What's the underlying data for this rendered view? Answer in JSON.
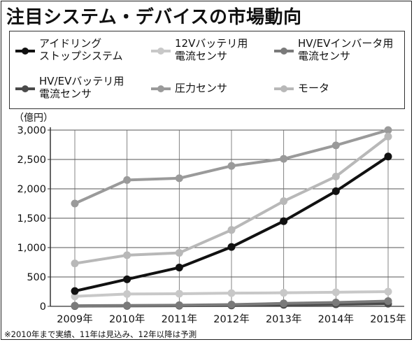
{
  "title": "注目システム・デバイスの市場動向",
  "unit_label": "（億円）",
  "footnote": "※2010年まで実績、11年は見込み、12年以降は予測",
  "chart_data": {
    "type": "line",
    "title": "注目システム・デバイスの市場動向",
    "xlabel": "",
    "ylabel": "（億円）",
    "categories": [
      "2009年",
      "2010年",
      "2011年",
      "2012年",
      "2013年",
      "2014年",
      "2015年"
    ],
    "y_ticks": [
      "0",
      "500",
      "1,000",
      "1,500",
      "2,000",
      "2,500",
      "3,000"
    ],
    "ylim": [
      0,
      3000
    ],
    "grid": true,
    "legend_position": "top",
    "series": [
      {
        "name": "アイドリング\nストップシステム",
        "color": "#111111",
        "values": [
          260,
          460,
          660,
          1010,
          1450,
          1960,
          2550
        ]
      },
      {
        "name": "12Vバッテリ用\n電流センサ",
        "color": "#c8c8c8",
        "values": [
          170,
          210,
          215,
          225,
          230,
          240,
          250
        ]
      },
      {
        "name": "HV/EVインバータ用\n電流センサ",
        "color": "#7a7a7a",
        "values": [
          10,
          15,
          20,
          30,
          50,
          65,
          90
        ]
      },
      {
        "name": "HV/EVバッテリ用\n電流センサ",
        "color": "#4a4a4a",
        "values": [
          5,
          8,
          10,
          15,
          25,
          35,
          45
        ]
      },
      {
        "name": "圧力センサ",
        "color": "#9a9a9a",
        "values": [
          1750,
          2150,
          2180,
          2390,
          2510,
          2740,
          3000
        ]
      },
      {
        "name": "モータ",
        "color": "#b8b8b8",
        "values": [
          730,
          870,
          910,
          1300,
          1790,
          2210,
          2890
        ]
      }
    ]
  }
}
